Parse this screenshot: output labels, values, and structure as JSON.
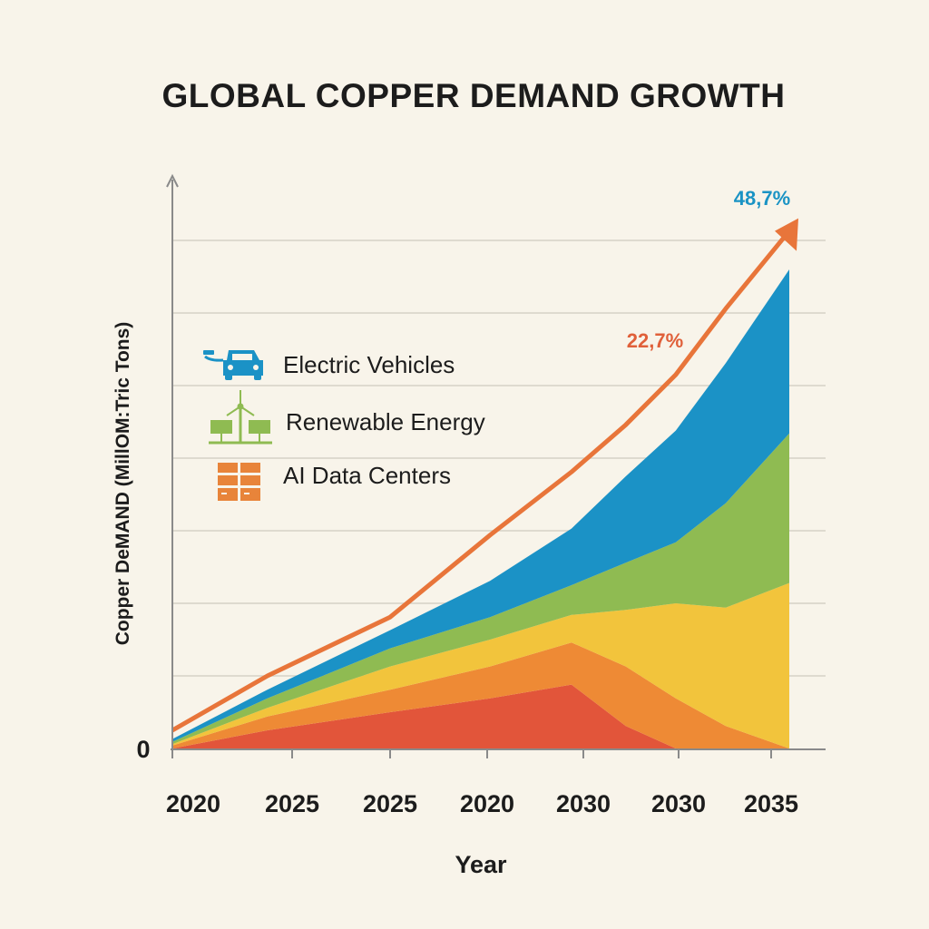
{
  "chart_data": {
    "type": "area",
    "stacked": true,
    "title": "GLOBAL COPPER DEMAND GROWTH",
    "xlabel": "Year",
    "ylabel": "Copper DeMAND (MillOM:Tric Tons)",
    "x_tick_labels": [
      "2020",
      "2025",
      "2025",
      "2020",
      "2030",
      "2030",
      "2035"
    ],
    "y_tick_labels": [
      "0"
    ],
    "ylim": [
      0,
      8
    ],
    "grid": true,
    "x": [
      0,
      1.54,
      3.53,
      5.15,
      6.47,
      7.35,
      8.16,
      8.97,
      10
    ],
    "series": [
      {
        "color": "#e2553a",
        "values": [
          0,
          0.25,
          0.5,
          0.69,
          0.88,
          0.31,
          0,
          0,
          0
        ]
      },
      {
        "color": "#ee8a35",
        "values": [
          0.04,
          0.19,
          0.31,
          0.44,
          0.58,
          0.82,
          0.69,
          0.31,
          0
        ]
      },
      {
        "color": "#f2c43c",
        "values": [
          0.02,
          0.12,
          0.32,
          0.37,
          0.38,
          0.78,
          1.31,
          1.63,
          2.28
        ]
      },
      {
        "name": "Renewable Energy",
        "color": "#8fbb52",
        "values": [
          0.03,
          0.13,
          0.25,
          0.31,
          0.41,
          0.65,
          0.84,
          1.44,
          2.06
        ]
      },
      {
        "name": "Electric Vehicles",
        "color": "#1b92c6",
        "values": [
          0.04,
          0.12,
          0.25,
          0.5,
          0.78,
          1.19,
          1.54,
          1.93,
          2.26
        ]
      }
    ],
    "trend_line": {
      "color": "#e8753a",
      "values": [
        0.25,
        1.0,
        1.81,
        2.94,
        3.81,
        4.46,
        5.15,
        6.06,
        7.13
      ]
    },
    "annotations": [
      {
        "text": "22,7%",
        "color": "#e0603a"
      },
      {
        "text": "48,7%",
        "color": "#1a93c4"
      }
    ],
    "legend": {
      "placement": "top-left",
      "items": [
        {
          "label": "Electric Vehicles",
          "icon": "electric-car-icon",
          "color": "#1b92c6"
        },
        {
          "label": "Renewable Energy",
          "icon": "wind-solar-icon",
          "color": "#8fbb52"
        },
        {
          "label": "AI Data Centers",
          "icon": "server-rack-icon",
          "color": "#e8843a"
        }
      ]
    }
  }
}
